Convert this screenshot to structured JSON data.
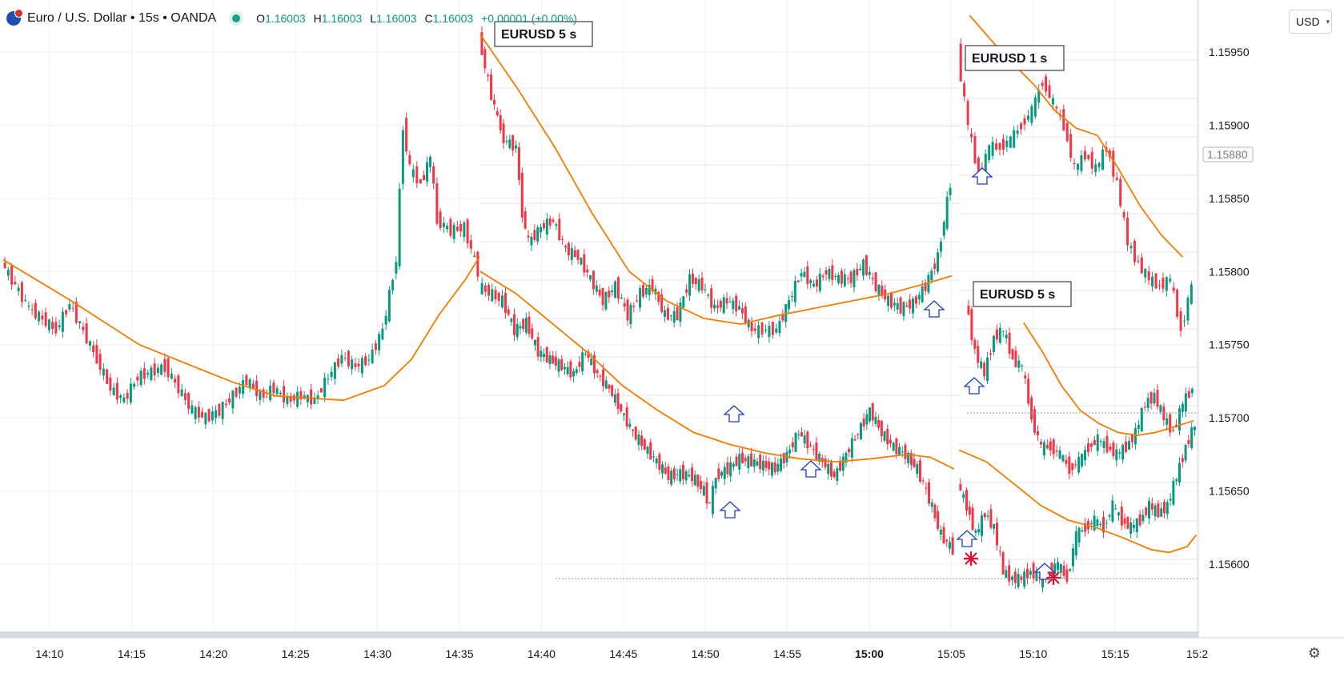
{
  "header": {
    "title": "Euro / U.S. Dollar • 15s • OANDA",
    "ohlc": [
      {
        "label": "O",
        "value": "1.16003"
      },
      {
        "label": "H",
        "value": "1.16003"
      },
      {
        "label": "L",
        "value": "1.16003"
      },
      {
        "label": "C",
        "value": "1.16003"
      },
      {
        "label": "",
        "value": "+0.00001 (+0.00%)"
      }
    ]
  },
  "currency": "USD",
  "chart_data": {
    "type": "candlestick",
    "xlabel": "",
    "ylabel": "",
    "ylim": [
      1.15565,
      1.16
    ],
    "price_ticks": [
      "1.15950",
      "1.15900",
      "1.15850",
      "1.15800",
      "1.15750",
      "1.15700",
      "1.15650",
      "1.15600"
    ],
    "current_price_label": "1.15880",
    "time_ticks": [
      {
        "label": "14:10",
        "bold": false
      },
      {
        "label": "14:15",
        "bold": false
      },
      {
        "label": "14:20",
        "bold": false
      },
      {
        "label": "14:25",
        "bold": false
      },
      {
        "label": "14:30",
        "bold": false
      },
      {
        "label": "14:35",
        "bold": false
      },
      {
        "label": "14:40",
        "bold": false
      },
      {
        "label": "14:45",
        "bold": false
      },
      {
        "label": "14:50",
        "bold": false
      },
      {
        "label": "14:55",
        "bold": false
      },
      {
        "label": "15:00",
        "bold": true
      },
      {
        "label": "15:05",
        "bold": false
      },
      {
        "label": "15:10",
        "bold": false
      },
      {
        "label": "15:15",
        "bold": false
      },
      {
        "label": "15:2",
        "bold": false
      }
    ],
    "colors": {
      "up": "#089981",
      "down": "#f23645",
      "ma": "#f57c00",
      "arrow": "#1a3cc8",
      "star": "#e01030",
      "grid": "#edf0f5"
    },
    "annotations": [
      {
        "type": "label",
        "text": "EURUSD  5 s"
      },
      {
        "type": "label",
        "text": "EURUSD  1 s"
      },
      {
        "type": "label",
        "text": "EURUSD  5 s"
      }
    ],
    "panels": [
      {
        "name": "",
        "time_start": "14:08:00",
        "time_end": "14:36:00",
        "path": [
          [
            0,
            1.15806
          ],
          [
            2,
            1.15775
          ],
          [
            4,
            1.1576
          ],
          [
            5,
            1.15778
          ],
          [
            7,
            1.1574
          ],
          [
            8,
            1.1572
          ],
          [
            9,
            1.15712
          ],
          [
            10,
            1.15728
          ],
          [
            12,
            1.15735
          ],
          [
            14,
            1.15705
          ],
          [
            15,
            1.157
          ],
          [
            16,
            1.15705
          ],
          [
            17,
            1.15715
          ],
          [
            18,
            1.15726
          ],
          [
            19,
            1.15715
          ],
          [
            20,
            1.1572
          ],
          [
            21,
            1.15712
          ],
          [
            22,
            1.15715
          ],
          [
            23,
            1.15712
          ],
          [
            24,
            1.15728
          ],
          [
            25,
            1.15742
          ],
          [
            26,
            1.15735
          ],
          [
            27,
            1.1574
          ],
          [
            28,
            1.1576
          ],
          [
            29,
            1.15808
          ],
          [
            29.5,
            1.159
          ],
          [
            30,
            1.1587
          ],
          [
            30.8,
            1.1586
          ],
          [
            31.5,
            1.15878
          ],
          [
            32,
            1.15835
          ],
          [
            33,
            1.15828
          ],
          [
            34,
            1.1583
          ],
          [
            35,
            1.158
          ]
        ],
        "ma": [
          [
            0,
            1.15808
          ],
          [
            5,
            1.1578
          ],
          [
            10,
            1.1575
          ],
          [
            14,
            1.15735
          ],
          [
            17,
            1.15724
          ],
          [
            20,
            1.15715
          ],
          [
            25,
            1.15712
          ],
          [
            28,
            1.15722
          ],
          [
            30,
            1.1574
          ],
          [
            32,
            1.1577
          ],
          [
            34,
            1.15795
          ],
          [
            35,
            1.1581
          ]
        ]
      },
      {
        "name": "EURUSD  5 s",
        "time_start": "14:36:00",
        "time_end": "15:05:30",
        "path": [
          [
            0,
            1.1596
          ],
          [
            1,
            1.1592
          ],
          [
            1.5,
            1.15905
          ],
          [
            2,
            1.1589
          ],
          [
            3,
            1.15885
          ],
          [
            3.5,
            1.1584
          ],
          [
            4,
            1.1582
          ],
          [
            5,
            1.1583
          ],
          [
            6,
            1.15835
          ],
          [
            7,
            1.15815
          ],
          [
            8,
            1.1581
          ],
          [
            9,
            1.15795
          ],
          [
            10,
            1.1578
          ],
          [
            11,
            1.1579
          ],
          [
            12,
            1.1577
          ],
          [
            13,
            1.15785
          ],
          [
            14,
            1.1579
          ],
          [
            15,
            1.1577
          ],
          [
            16,
            1.1577
          ],
          [
            17,
            1.15795
          ],
          [
            18,
            1.1579
          ],
          [
            19,
            1.15775
          ],
          [
            20,
            1.1578
          ],
          [
            21,
            1.15775
          ],
          [
            22,
            1.1576
          ],
          [
            24,
            1.1576
          ],
          [
            25,
            1.1578
          ],
          [
            26,
            1.158
          ],
          [
            27,
            1.1579
          ],
          [
            28,
            1.158
          ],
          [
            29,
            1.15795
          ],
          [
            30,
            1.15795
          ],
          [
            31,
            1.15805
          ],
          [
            32,
            1.1579
          ],
          [
            33,
            1.1578
          ],
          [
            34,
            1.15775
          ],
          [
            35,
            1.15778
          ],
          [
            36,
            1.1579
          ],
          [
            37,
            1.1581
          ],
          [
            38,
            1.1586
          ]
        ],
        "ma": [
          [
            0,
            1.15962
          ],
          [
            3,
            1.15925
          ],
          [
            6,
            1.15885
          ],
          [
            9,
            1.1584
          ],
          [
            12,
            1.158
          ],
          [
            15,
            1.1578
          ],
          [
            18,
            1.15768
          ],
          [
            21,
            1.15764
          ],
          [
            24,
            1.1577
          ],
          [
            27,
            1.15775
          ],
          [
            30,
            1.1578
          ],
          [
            33,
            1.15785
          ],
          [
            36,
            1.15792
          ],
          [
            38,
            1.15797
          ]
        ]
      },
      {
        "name": "",
        "time_start": "14:36:00",
        "time_end": "15:05:30",
        "path": [
          [
            0,
            1.1579
          ],
          [
            2,
            1.1578
          ],
          [
            3,
            1.1576
          ],
          [
            4,
            1.15765
          ],
          [
            5,
            1.15745
          ],
          [
            6,
            1.1574
          ],
          [
            7,
            1.15735
          ],
          [
            8,
            1.1573
          ],
          [
            9,
            1.15745
          ],
          [
            10,
            1.1573
          ],
          [
            11,
            1.1572
          ],
          [
            12,
            1.15705
          ],
          [
            13,
            1.1569
          ],
          [
            14,
            1.1568
          ],
          [
            15,
            1.1567
          ],
          [
            16,
            1.1566
          ],
          [
            17,
            1.15662
          ],
          [
            18,
            1.1566
          ],
          [
            19,
            1.1565
          ],
          [
            19.5,
            1.1564
          ],
          [
            20,
            1.1566
          ],
          [
            21,
            1.15665
          ],
          [
            22,
            1.15672
          ],
          [
            23,
            1.1567
          ],
          [
            24,
            1.15668
          ],
          [
            25,
            1.15665
          ],
          [
            26,
            1.15675
          ],
          [
            27,
            1.1569
          ],
          [
            28,
            1.1568
          ],
          [
            29,
            1.1567
          ],
          [
            30,
            1.1566
          ],
          [
            31,
            1.15675
          ],
          [
            32,
            1.1569
          ],
          [
            33,
            1.15705
          ],
          [
            34,
            1.1569
          ],
          [
            35,
            1.1568
          ],
          [
            36,
            1.15675
          ],
          [
            37,
            1.15665
          ],
          [
            38,
            1.15645
          ],
          [
            39,
            1.1562
          ],
          [
            40,
            1.1561
          ]
        ],
        "ma": [
          [
            0,
            1.158
          ],
          [
            3,
            1.15785
          ],
          [
            6,
            1.15765
          ],
          [
            9,
            1.15745
          ],
          [
            12,
            1.15722
          ],
          [
            15,
            1.15705
          ],
          [
            18,
            1.1569
          ],
          [
            21,
            1.15682
          ],
          [
            24,
            1.15676
          ],
          [
            27,
            1.15672
          ],
          [
            30,
            1.1567
          ],
          [
            33,
            1.15672
          ],
          [
            36,
            1.15675
          ],
          [
            38,
            1.15673
          ],
          [
            40,
            1.15665
          ]
        ]
      },
      {
        "name": "EURUSD  1 s",
        "time_start": "15:05:40",
        "time_end": "15:16:00",
        "path": [
          [
            0,
            1.1595
          ],
          [
            1,
            1.159
          ],
          [
            2,
            1.15865
          ],
          [
            3,
            1.15885
          ],
          [
            4,
            1.15885
          ],
          [
            5,
            1.1589
          ],
          [
            6,
            1.159
          ],
          [
            7,
            1.1591
          ],
          [
            8,
            1.1593
          ],
          [
            9,
            1.15915
          ],
          [
            10,
            1.159
          ],
          [
            11,
            1.1587
          ],
          [
            12,
            1.1588
          ],
          [
            13,
            1.1587
          ],
          [
            14,
            1.15885
          ],
          [
            15,
            1.1586
          ],
          [
            16,
            1.1582
          ],
          [
            17,
            1.15805
          ],
          [
            18,
            1.15795
          ],
          [
            19,
            1.1579
          ],
          [
            20,
            1.15795
          ],
          [
            21,
            1.1576
          ],
          [
            22,
            1.1579
          ]
        ],
        "ma": [
          [
            1,
            1.15975
          ],
          [
            4,
            1.1595
          ],
          [
            7,
            1.15928
          ],
          [
            9,
            1.1591
          ],
          [
            11,
            1.15898
          ],
          [
            13,
            1.15893
          ],
          [
            15,
            1.1587
          ],
          [
            17,
            1.15845
          ],
          [
            19,
            1.15825
          ],
          [
            21,
            1.1581
          ]
        ]
      },
      {
        "name": "EURUSD  5 s",
        "time_start": "15:05:40",
        "time_end": "15:16:00",
        "path": [
          [
            0,
            1.1578
          ],
          [
            1,
            1.15745
          ],
          [
            2,
            1.1573
          ],
          [
            3,
            1.15755
          ],
          [
            4,
            1.1576
          ],
          [
            5,
            1.1574
          ],
          [
            6,
            1.15735
          ],
          [
            7,
            1.157
          ],
          [
            8,
            1.1568
          ],
          [
            9,
            1.1568
          ],
          [
            10,
            1.15675
          ],
          [
            11,
            1.15665
          ],
          [
            12,
            1.1567
          ],
          [
            13,
            1.1568
          ],
          [
            14,
            1.15685
          ],
          [
            15,
            1.1568
          ],
          [
            16,
            1.15675
          ],
          [
            17,
            1.1568
          ],
          [
            18,
            1.1569
          ],
          [
            19,
            1.1571
          ],
          [
            20,
            1.15715
          ],
          [
            21,
            1.157
          ],
          [
            22,
            1.1569
          ],
          [
            23,
            1.1571
          ],
          [
            24,
            1.1572
          ]
        ],
        "ma": [
          [
            6,
            1.15765
          ],
          [
            8,
            1.15745
          ],
          [
            10,
            1.15722
          ],
          [
            12,
            1.15705
          ],
          [
            14,
            1.15696
          ],
          [
            16,
            1.1569
          ],
          [
            18,
            1.15688
          ],
          [
            20,
            1.1569
          ],
          [
            22,
            1.15694
          ],
          [
            24,
            1.15698
          ]
        ]
      },
      {
        "name": "",
        "time_start": "15:05:40",
        "time_end": "15:16:00",
        "path": [
          [
            0,
            1.15655
          ],
          [
            1,
            1.1564
          ],
          [
            2,
            1.1562
          ],
          [
            3,
            1.15635
          ],
          [
            4,
            1.15625
          ],
          [
            5,
            1.15595
          ],
          [
            6,
            1.1559
          ],
          [
            7,
            1.1559
          ],
          [
            8,
            1.15595
          ],
          [
            9,
            1.1559
          ],
          [
            10,
            1.15595
          ],
          [
            11,
            1.156
          ],
          [
            12,
            1.1559
          ],
          [
            13,
            1.1562
          ],
          [
            14,
            1.15625
          ],
          [
            15,
            1.1563
          ],
          [
            16,
            1.15625
          ],
          [
            17,
            1.1564
          ],
          [
            18,
            1.1563
          ],
          [
            19,
            1.15625
          ],
          [
            20,
            1.1563
          ],
          [
            21,
            1.1564
          ],
          [
            22,
            1.15635
          ],
          [
            23,
            1.1564
          ],
          [
            24,
            1.1566
          ],
          [
            25,
            1.1568
          ],
          [
            26,
            1.15695
          ]
        ],
        "ma": [
          [
            0,
            1.15678
          ],
          [
            3,
            1.1567
          ],
          [
            6,
            1.15655
          ],
          [
            9,
            1.1564
          ],
          [
            12,
            1.1563
          ],
          [
            15,
            1.15625
          ],
          [
            18,
            1.15618
          ],
          [
            21,
            1.1561
          ],
          [
            23,
            1.15608
          ],
          [
            25,
            1.15612
          ],
          [
            26,
            1.1562
          ]
        ]
      }
    ]
  }
}
